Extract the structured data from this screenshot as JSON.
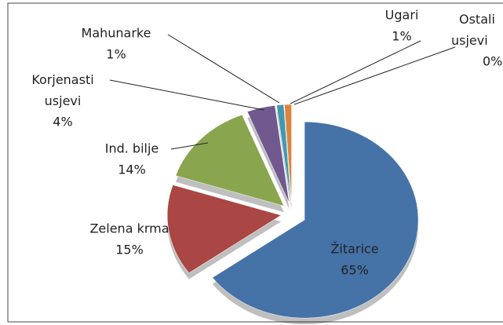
{
  "chart_data": {
    "type": "pie",
    "categories": [
      "Žitarice",
      "Zelena krma",
      "Ind. bilje",
      "Korjenasti usjevi",
      "Mahunarke",
      "Ugari",
      "Ostali usjevi"
    ],
    "values": [
      65,
      15,
      14,
      4,
      1,
      1,
      0
    ],
    "value_labels": [
      "65%",
      "15%",
      "14%",
      "4%",
      "1%",
      "1%",
      "0%"
    ],
    "colors": [
      "#4572a7",
      "#aa4643",
      "#89a54e",
      "#71588f",
      "#4198af",
      "#db843d",
      "#93a9cf"
    ]
  }
}
